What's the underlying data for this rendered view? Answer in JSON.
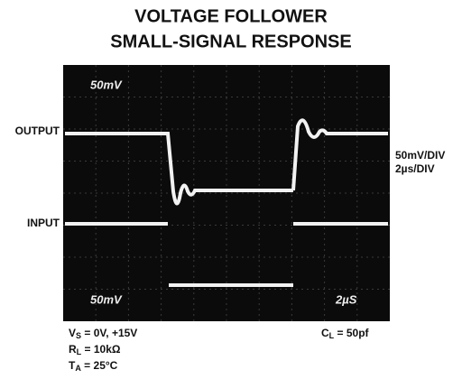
{
  "header": {
    "title": [
      "VOLTAGE FOLLOWER",
      "SMALL-SIGNAL RESPONSE"
    ]
  },
  "scope": {
    "top_scale": "50mV",
    "bottom_scale": "50mV",
    "time_scale": "2µS"
  },
  "trace_labels": {
    "output": "OUTPUT",
    "input": "INPUT"
  },
  "scale_notes": [
    "50mV/DIV",
    "2µs/DIV"
  ],
  "conditions": [
    {
      "symbol": "V",
      "subscript": "S",
      "value": " = 0V, +15V"
    },
    {
      "symbol": "R",
      "subscript": "L",
      "value": " = 10kΩ"
    },
    {
      "symbol": "T",
      "subscript": "A",
      "value": " = 25°C"
    },
    {
      "symbol": "C",
      "subscript": "L",
      "value": " = 50pf"
    }
  ]
}
